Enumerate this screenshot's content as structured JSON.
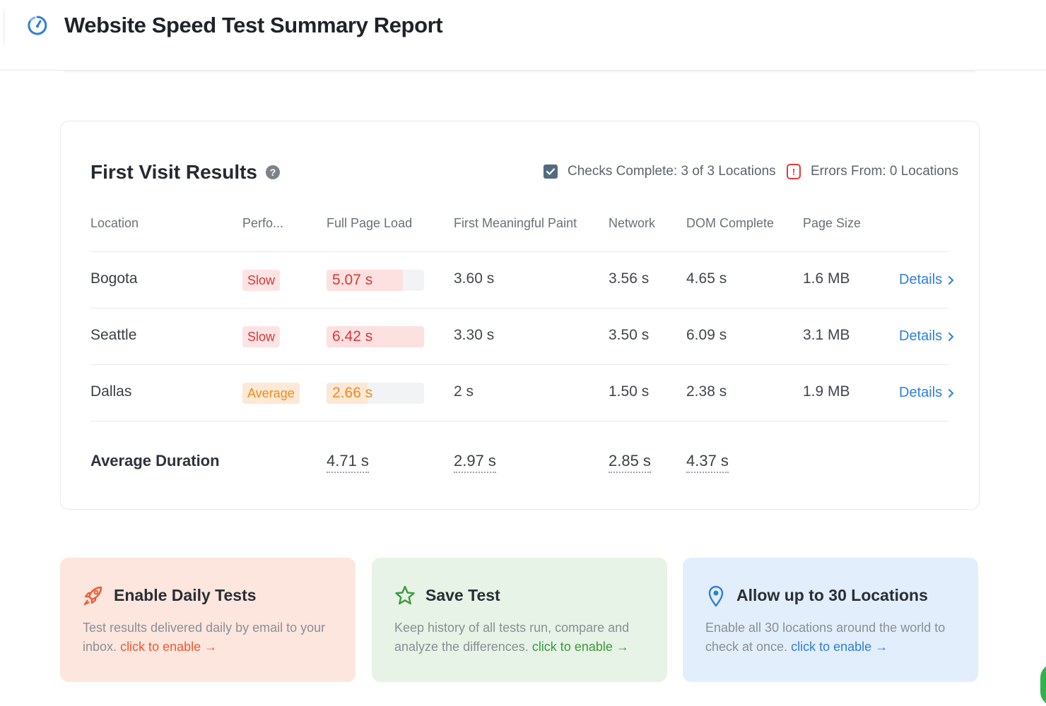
{
  "header": {
    "title": "Website Speed Test Summary Report"
  },
  "results": {
    "title": "First Visit Results",
    "checks": {
      "label": "Checks Complete:",
      "value": "3 of 3 Locations"
    },
    "errors": {
      "label": "Errors From:",
      "value": "0 Locations"
    },
    "columns": [
      "Location",
      "Perfo...",
      "Full Page Load",
      "First Meaningful Paint",
      "Network",
      "DOM Complete",
      "Page Size"
    ],
    "rows": [
      {
        "location": "Bogota",
        "perf": "Slow",
        "perf_level": "slow",
        "full_load": "5.07 s",
        "full_load_fill": 0.78,
        "fmp": "3.60 s",
        "network": "3.56 s",
        "dom": "4.65 s",
        "size": "1.6 MB",
        "details": "Details"
      },
      {
        "location": "Seattle",
        "perf": "Slow",
        "perf_level": "slow",
        "full_load": "6.42 s",
        "full_load_fill": 1.0,
        "fmp": "3.30 s",
        "network": "3.50 s",
        "dom": "6.09 s",
        "size": "3.1 MB",
        "details": "Details"
      },
      {
        "location": "Dallas",
        "perf": "Average",
        "perf_level": "average",
        "full_load": "2.66 s",
        "full_load_fill": 0.42,
        "fmp": "2 s",
        "network": "1.50 s",
        "dom": "2.38 s",
        "size": "1.9 MB",
        "details": "Details"
      }
    ],
    "average": {
      "label": "Average Duration",
      "full_load": "4.71 s",
      "fmp": "2.97 s",
      "network": "2.85 s",
      "dom": "4.37 s"
    }
  },
  "promos": [
    {
      "title": "Enable Daily Tests",
      "text": "Test results delivered daily by email to your inbox.",
      "link": "click to enable",
      "color": "#ee5a32",
      "icon": "rocket-icon"
    },
    {
      "title": "Save Test",
      "text": "Keep history of all tests run, compare and analyze the differences.",
      "link": "click to enable",
      "color": "#3c9a3c",
      "icon": "star-icon"
    },
    {
      "title": "Allow up to 30 Locations",
      "text": "Enable all 30 locations around the world to check at once.",
      "link": "click to enable",
      "color": "#2f7fd6",
      "icon": "location-pin-icon"
    }
  ]
}
